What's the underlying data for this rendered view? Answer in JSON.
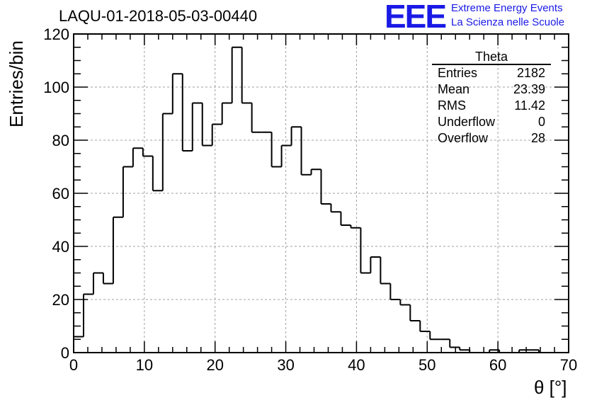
{
  "header": {
    "title": "LAQU-01-2018-05-03-00440",
    "logo_text": "EEE",
    "logo_line1": "Extreme Energy Events",
    "logo_line2": "La Scienza nelle Scuole"
  },
  "stats": {
    "title": "Theta",
    "rows": [
      {
        "label": "Entries",
        "value": "2182"
      },
      {
        "label": "Mean",
        "value": "23.39"
      },
      {
        "label": "RMS",
        "value": "11.42"
      },
      {
        "label": "Underflow",
        "value": "0"
      },
      {
        "label": "Overflow",
        "value": "28"
      }
    ]
  },
  "colors": {
    "line": "#000000",
    "grid": "#a0a0a0",
    "logo": "#1a1ae6"
  },
  "chart_data": {
    "type": "histogram",
    "title": "LAQU-01-2018-05-03-00440",
    "xlabel": "θ [°]",
    "ylabel": "Entries/bin",
    "xlim": [
      0,
      70
    ],
    "ylim": [
      0,
      120
    ],
    "bin_width": 1.4,
    "grid": true,
    "x_ticks": [
      0,
      10,
      20,
      30,
      40,
      50,
      60,
      70
    ],
    "y_ticks": [
      0,
      20,
      40,
      60,
      80,
      100,
      120
    ],
    "values": [
      6,
      22,
      30,
      26,
      51,
      70,
      77,
      74,
      61,
      90,
      105,
      76,
      94,
      78,
      86,
      94,
      115,
      94,
      83,
      83,
      70,
      78,
      85,
      67,
      69,
      56,
      53,
      48,
      47,
      30,
      36,
      26,
      20,
      18,
      12,
      8,
      5,
      5,
      2,
      1,
      0,
      0,
      1,
      0,
      0,
      1,
      1,
      0,
      0,
      0
    ]
  }
}
